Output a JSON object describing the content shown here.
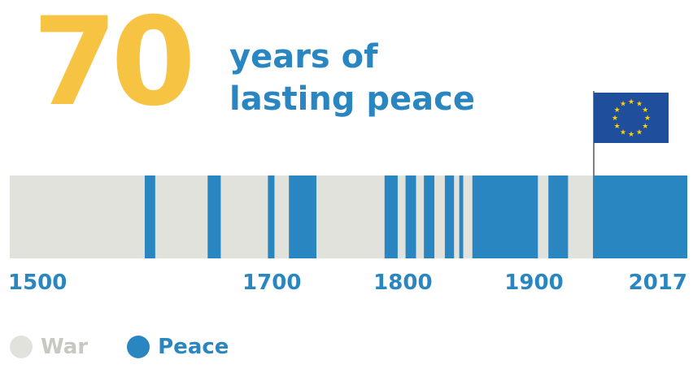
{
  "headline": {
    "number": "70",
    "line1": "years of",
    "line2": "lasting peace"
  },
  "chart_data": {
    "type": "bar",
    "xlim": [
      1500,
      2017
    ],
    "tick_labels": [
      "1500",
      "1700",
      "1800",
      "1900",
      "2017"
    ],
    "ticks": [
      1500,
      1700,
      1800,
      1900,
      2017
    ],
    "base_state": "War",
    "peace_periods": [
      [
        1603,
        1611
      ],
      [
        1651,
        1661
      ],
      [
        1697,
        1702
      ],
      [
        1713,
        1734
      ],
      [
        1786,
        1796
      ],
      [
        1802,
        1810
      ],
      [
        1816,
        1824
      ],
      [
        1832,
        1839
      ],
      [
        1843,
        1846
      ],
      [
        1853,
        1903
      ],
      [
        1911,
        1926
      ],
      [
        1945,
        2017
      ]
    ],
    "flag_year": 1945,
    "legend": [
      {
        "label": "War",
        "color": "#e2e2dd"
      },
      {
        "label": "Peace",
        "color": "#2a86c0"
      }
    ]
  },
  "colors": {
    "war": "#e2e2dd",
    "peace": "#2a86c0",
    "accent_yellow": "#f6c343",
    "flag_blue": "#1f4e9c",
    "star_yellow": "#ffd200",
    "tick_text": "#2a86c0"
  },
  "icons": {
    "flag": "eu-flag-icon"
  }
}
